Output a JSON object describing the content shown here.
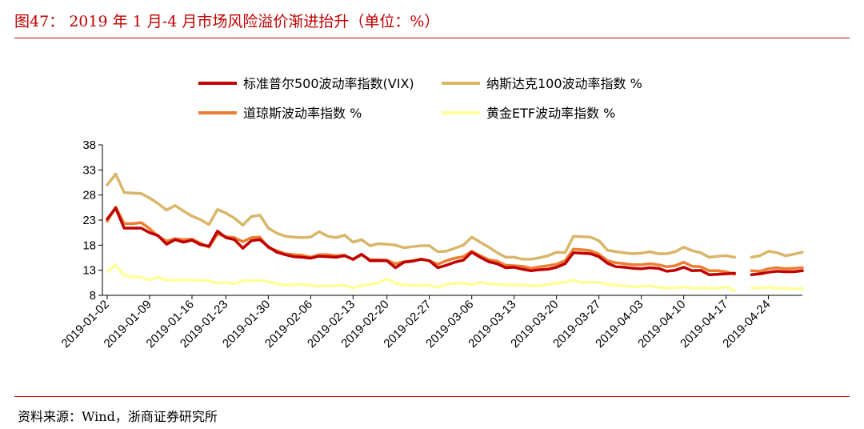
{
  "title": "图47： 2019 年 1 月-4 月市场风险溢价渐进抬升（单位：%）",
  "source": "资料来源：Wind，浙商证券研究所",
  "chart_data": {
    "type": "line",
    "title": "图47： 2019 年 1 月-4 月市场风险溢价渐进抬升（单位：%）",
    "xlabel": "",
    "ylabel": "",
    "ylim": [
      8,
      38
    ],
    "yticks": [
      8,
      13,
      18,
      23,
      28,
      33,
      38
    ],
    "grid": false,
    "legend_position": "top",
    "x": [
      "2019-01-02",
      "2019-01-03",
      "2019-01-04",
      "2019-01-07",
      "2019-01-08",
      "2019-01-09",
      "2019-01-10",
      "2019-01-11",
      "2019-01-14",
      "2019-01-15",
      "2019-01-16",
      "2019-01-17",
      "2019-01-18",
      "2019-01-22",
      "2019-01-23",
      "2019-01-24",
      "2019-01-25",
      "2019-01-28",
      "2019-01-29",
      "2019-01-30",
      "2019-01-31",
      "2019-02-01",
      "2019-02-04",
      "2019-02-05",
      "2019-02-06",
      "2019-02-07",
      "2019-02-08",
      "2019-02-11",
      "2019-02-12",
      "2019-02-13",
      "2019-02-14",
      "2019-02-15",
      "2019-02-19",
      "2019-02-20",
      "2019-02-21",
      "2019-02-22",
      "2019-02-25",
      "2019-02-26",
      "2019-02-27",
      "2019-02-28",
      "2019-03-01",
      "2019-03-04",
      "2019-03-05",
      "2019-03-06",
      "2019-03-07",
      "2019-03-08",
      "2019-03-11",
      "2019-03-12",
      "2019-03-13",
      "2019-03-14",
      "2019-03-15",
      "2019-03-18",
      "2019-03-19",
      "2019-03-20",
      "2019-03-21",
      "2019-03-22",
      "2019-03-25",
      "2019-03-26",
      "2019-03-27",
      "2019-03-28",
      "2019-03-29",
      "2019-04-01",
      "2019-04-02",
      "2019-04-03",
      "2019-04-04",
      "2019-04-05",
      "2019-04-08",
      "2019-04-09",
      "2019-04-10",
      "2019-04-11",
      "2019-04-12",
      "2019-04-15",
      "2019-04-16",
      "2019-04-17",
      "2019-04-18",
      "2019-04-19",
      "2019-04-22",
      "2019-04-23",
      "2019-04-24",
      "2019-04-25",
      "2019-04-26",
      "2019-04-29",
      "2019-04-30"
    ],
    "x_tick_labels": [
      "2019-01-02",
      "2019-01-09",
      "2019-01-16",
      "2019-01-23",
      "2019-01-30",
      "2019-02-06",
      "2019-02-13",
      "2019-02-20",
      "2019-02-27",
      "2019-03-06",
      "2019-03-13",
      "2019-03-20",
      "2019-03-27",
      "2019-04-03",
      "2019-04-10",
      "2019-04-17",
      "2019-04-24"
    ],
    "series": [
      {
        "name": "标准普尔500波动率指数(VIX)",
        "color": "#c00000",
        "width": 3.5,
        "values": [
          23.2,
          25.4,
          21.4,
          21.4,
          21.4,
          20.5,
          19.9,
          18.2,
          19.1,
          18.6,
          19.0,
          18.1,
          17.8,
          20.8,
          19.5,
          19.1,
          17.4,
          18.9,
          19.1,
          17.7,
          16.6,
          16.1,
          15.7,
          15.6,
          15.4,
          15.8,
          15.7,
          15.6,
          15.9,
          15.2,
          16.2,
          14.9,
          14.9,
          14.9,
          13.5,
          14.6,
          14.8,
          15.2,
          14.9,
          13.5,
          14.0,
          14.6,
          15.0,
          16.6,
          15.6,
          14.7,
          14.3,
          13.5,
          13.6,
          13.2,
          12.9,
          13.1,
          13.2,
          13.6,
          14.3,
          16.5,
          16.4,
          16.3,
          15.7,
          14.4,
          13.7,
          13.6,
          13.4,
          13.3,
          13.5,
          13.4,
          12.8,
          13.0,
          13.6,
          12.9,
          13.0,
          12.1,
          12.2,
          12.3,
          12.4,
          null,
          12.1,
          12.3,
          12.6,
          12.8,
          12.7,
          12.7,
          12.9
        ]
      },
      {
        "name": "纳斯达克100波动率指数 %",
        "color": "#d9b66a",
        "width": 3.5,
        "values": [
          30.0,
          32.2,
          28.5,
          28.4,
          28.3,
          27.4,
          26.3,
          25.0,
          25.9,
          24.8,
          23.8,
          23.1,
          22.1,
          25.1,
          24.4,
          23.4,
          22.0,
          23.7,
          24.0,
          21.4,
          20.4,
          19.8,
          19.6,
          19.5,
          19.6,
          20.7,
          19.8,
          19.5,
          20.0,
          18.6,
          19.1,
          17.9,
          18.3,
          18.2,
          18.0,
          17.5,
          17.7,
          17.9,
          17.9,
          16.7,
          16.8,
          17.4,
          18.0,
          19.6,
          18.6,
          17.6,
          16.5,
          15.6,
          15.6,
          15.2,
          15.2,
          15.5,
          15.9,
          16.6,
          16.5,
          19.8,
          19.7,
          19.6,
          18.9,
          17.0,
          16.7,
          16.5,
          16.3,
          16.4,
          16.7,
          16.3,
          16.3,
          16.7,
          17.6,
          16.9,
          16.5,
          15.6,
          15.8,
          15.9,
          15.6,
          null,
          15.6,
          15.9,
          16.8,
          16.5,
          15.9,
          16.2,
          16.6
        ]
      },
      {
        "name": "道琼斯波动率指数 %",
        "color": "#ed7d31",
        "width": 3.5,
        "values": [
          22.8,
          25.6,
          22.3,
          22.3,
          22.5,
          21.3,
          19.8,
          18.8,
          19.3,
          19.1,
          19.2,
          18.4,
          17.6,
          20.2,
          19.7,
          19.5,
          18.7,
          19.5,
          19.6,
          17.5,
          16.9,
          16.3,
          16.1,
          16.0,
          15.6,
          16.1,
          16.1,
          15.9,
          16.0,
          15.1,
          16.1,
          15.1,
          15.1,
          15.0,
          14.3,
          14.7,
          14.9,
          15.2,
          14.9,
          14.2,
          14.9,
          15.4,
          15.7,
          16.8,
          15.9,
          15.1,
          14.8,
          14.0,
          13.9,
          13.8,
          13.4,
          13.7,
          13.9,
          14.2,
          14.9,
          17.2,
          17.1,
          16.9,
          16.2,
          14.9,
          14.5,
          14.3,
          14.1,
          14.1,
          14.3,
          14.1,
          13.7,
          13.9,
          14.6,
          13.8,
          13.7,
          12.9,
          12.9,
          12.7,
          12.2,
          null,
          12.9,
          12.8,
          13.3,
          13.5,
          13.3,
          13.4,
          13.5
        ]
      },
      {
        "name": "黄金ETF波动率指数 %",
        "color": "#ffff99",
        "width": 3.5,
        "values": [
          12.8,
          14.0,
          12.0,
          11.7,
          11.6,
          11.1,
          11.6,
          11.0,
          11.0,
          11.1,
          11.0,
          11.0,
          10.9,
          10.4,
          10.6,
          10.3,
          10.9,
          10.9,
          11.0,
          10.8,
          10.3,
          10.1,
          10.1,
          10.2,
          10.0,
          9.8,
          9.9,
          9.9,
          10.0,
          9.5,
          9.9,
          10.2,
          10.5,
          11.3,
          10.4,
          10.1,
          10.0,
          10.0,
          10.0,
          9.6,
          10.2,
          10.4,
          10.4,
          10.2,
          10.6,
          10.3,
          10.2,
          10.1,
          10.1,
          10.1,
          9.9,
          9.9,
          10.2,
          10.4,
          10.6,
          11.0,
          10.5,
          10.6,
          10.6,
          10.2,
          10.0,
          9.9,
          9.7,
          9.7,
          9.9,
          9.6,
          9.5,
          9.5,
          9.7,
          9.4,
          9.5,
          9.5,
          9.4,
          9.7,
          8.9,
          null,
          9.5,
          9.5,
          9.6,
          9.4,
          9.4,
          9.3,
          9.4
        ]
      }
    ]
  }
}
